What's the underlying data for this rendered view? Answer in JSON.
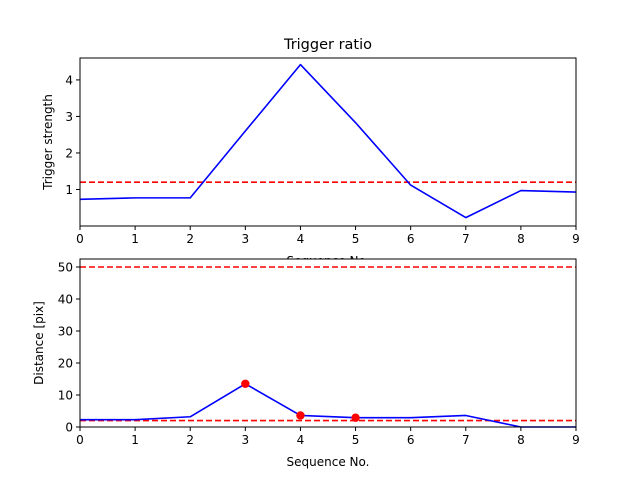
{
  "chart_data": [
    {
      "type": "line",
      "title": "Trigger ratio",
      "xlabel": "Sequence No.",
      "ylabel": "Trigger strength",
      "xlim": [
        0,
        9
      ],
      "ylim": [
        0,
        4.6
      ],
      "xticks": [
        0,
        1,
        2,
        3,
        4,
        5,
        6,
        7,
        8,
        9
      ],
      "yticks": [
        1,
        2,
        3,
        4
      ],
      "series": [
        {
          "x": [
            0,
            1,
            2,
            3,
            4,
            5,
            6,
            7,
            8,
            9
          ],
          "values": [
            0.73,
            0.77,
            0.77,
            2.6,
            4.42,
            2.83,
            1.12,
            0.23,
            0.97,
            0.93
          ],
          "color": "#0000ff"
        }
      ],
      "hlines": [
        {
          "y": 1.2,
          "color": "#ff0000",
          "style": "dashed"
        }
      ],
      "markers": []
    },
    {
      "type": "line",
      "title": "",
      "xlabel": "Sequence No.",
      "ylabel": "Distance [pix]",
      "xlim": [
        0,
        9
      ],
      "ylim": [
        0,
        52.5
      ],
      "xticks": [
        0,
        1,
        2,
        3,
        4,
        5,
        6,
        7,
        8,
        9
      ],
      "yticks": [
        0,
        10,
        20,
        30,
        40,
        50
      ],
      "series": [
        {
          "x": [
            0,
            1,
            2,
            3,
            4,
            5,
            6,
            7,
            8,
            9
          ],
          "values": [
            2.3,
            2.3,
            3.2,
            13.5,
            3.6,
            2.9,
            2.9,
            3.6,
            0,
            0
          ],
          "color": "#0000ff"
        }
      ],
      "hlines": [
        {
          "y": 50,
          "color": "#ff0000",
          "style": "dashed"
        },
        {
          "y": 2,
          "color": "#ff0000",
          "style": "dashed"
        }
      ],
      "markers": [
        {
          "x": 3,
          "y": 13.5,
          "color": "#ff0000"
        },
        {
          "x": 4,
          "y": 3.6,
          "color": "#ff0000"
        },
        {
          "x": 5,
          "y": 2.9,
          "color": "#ff0000"
        }
      ]
    }
  ]
}
